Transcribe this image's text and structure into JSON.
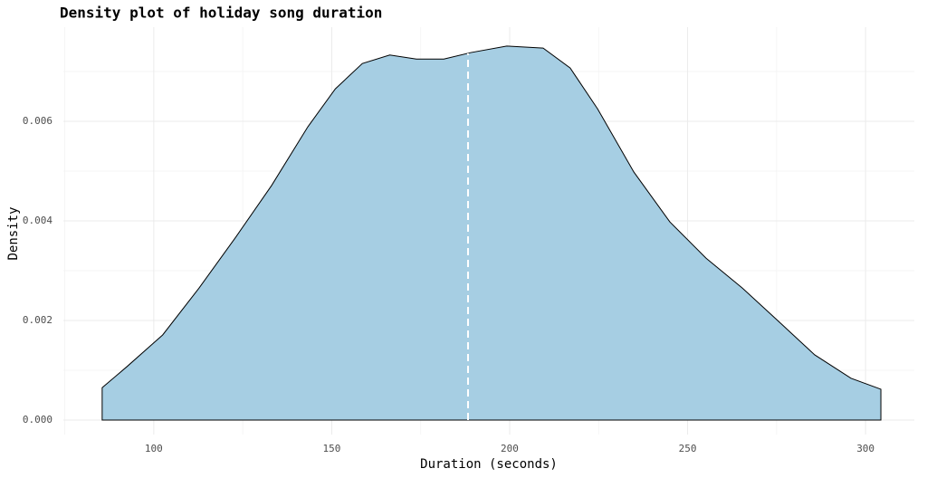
{
  "chart_data": {
    "type": "density",
    "title": "Density plot of holiday song duration",
    "x_label": "Duration (seconds)",
    "y_label": "Density",
    "x": [
      85.5,
      92.4,
      102.5,
      112.7,
      123,
      133.1,
      143.3,
      151,
      158.6,
      166.3,
      173.8,
      181.5,
      189.1,
      199.2,
      209.4,
      217,
      224.7,
      234.9,
      245,
      255.2,
      265.4,
      275.6,
      285.7,
      295.9,
      304.3
    ],
    "values": [
      0.00065,
      0.00107,
      0.00171,
      0.00265,
      0.00367,
      0.00471,
      0.00589,
      0.00665,
      0.00716,
      0.00733,
      0.00725,
      0.00725,
      0.00738,
      0.00751,
      0.00747,
      0.00707,
      0.00625,
      0.00498,
      0.00398,
      0.00325,
      0.00265,
      0.00198,
      0.00131,
      0.00084,
      0.00062
    ],
    "color": "#a6cee3",
    "median_line": 188.3,
    "xlim": [
      74.6,
      313.7
    ],
    "ylim": [
      -0.00029,
      0.00789
    ],
    "xticks": [
      100,
      150,
      200,
      250,
      300
    ],
    "yticks": [
      {
        "value": 0,
        "label": "0.000"
      },
      {
        "value": 0.002,
        "label": "0.002"
      },
      {
        "value": 0.004,
        "label": "0.004"
      },
      {
        "value": 0.006,
        "label": "0.006"
      }
    ],
    "x_minor_grid": [
      75,
      125,
      175,
      225,
      275
    ],
    "y_minor_grid": [
      0.001,
      0.003,
      0.005,
      0.007
    ],
    "grid": true
  }
}
